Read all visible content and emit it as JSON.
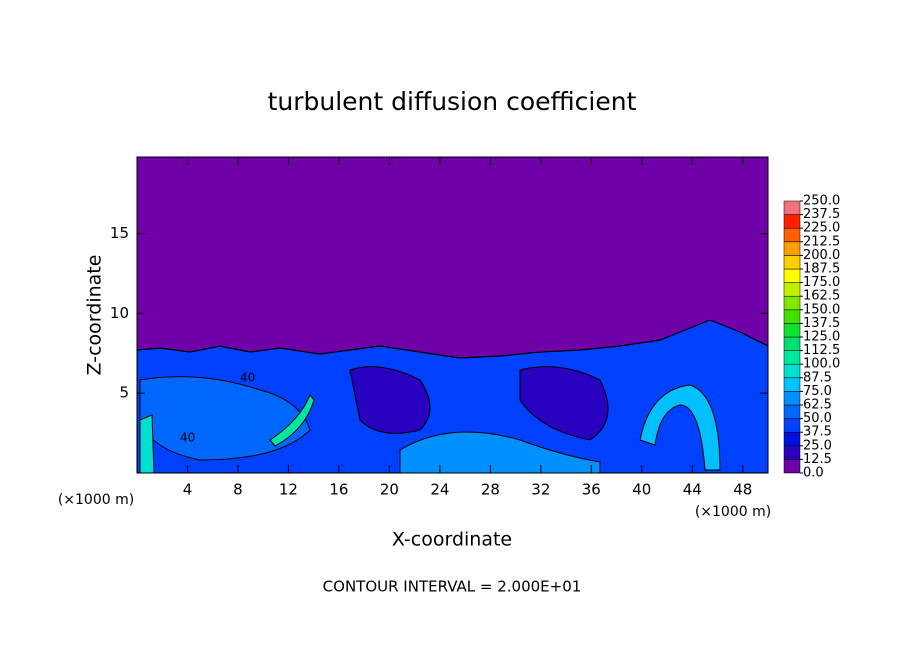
{
  "chart_data": {
    "type": "contour",
    "title": "turbulent diffusion coefficient",
    "x_label": "X-coordinate",
    "y_label": "Z-coordinate",
    "x_unit": "(×1000 m)",
    "footer": "CONTOUR INTERVAL = 2.000E+01",
    "contour_labels": [
      "40",
      "40"
    ],
    "xlim": [
      0,
      50
    ],
    "xticks": [
      4,
      8,
      12,
      16,
      20,
      24,
      28,
      32,
      36,
      40,
      44,
      48
    ],
    "ylim": [
      0,
      19.8
    ],
    "yticks": [
      5,
      10,
      15
    ],
    "colorbar": {
      "levels": [
        {
          "value": 0,
          "label": "0.0"
        },
        12.5,
        {
          "value": 25,
          "label": "25.0"
        },
        37.5,
        {
          "value": 50,
          "label": "50.0"
        },
        62.5,
        {
          "value": 75,
          "label": "75.0"
        },
        87.5,
        {
          "value": 100,
          "label": "100.0"
        },
        112.5,
        {
          "value": 125,
          "label": "125.0"
        },
        137.5,
        {
          "value": 150,
          "label": "150.0"
        },
        162.5,
        {
          "value": 175,
          "label": "175.0"
        },
        187.5,
        {
          "value": 200,
          "label": "200.0"
        },
        212.5,
        {
          "value": 225,
          "label": "225.0"
        },
        237.5,
        {
          "value": 250,
          "label": "250.0"
        }
      ],
      "colors": [
        "#7000a8",
        "#2800c0",
        "#0010e0",
        "#0040ff",
        "#0068ff",
        "#0090ff",
        "#00c0ff",
        "#00e0d0",
        "#00e8a0",
        "#00e070",
        "#10e030",
        "#40e000",
        "#80e800",
        "#c0f000",
        "#ffff00",
        "#ffd000",
        "#ffa000",
        "#ff6000",
        "#ff2000",
        "#f07080"
      ]
    }
  }
}
